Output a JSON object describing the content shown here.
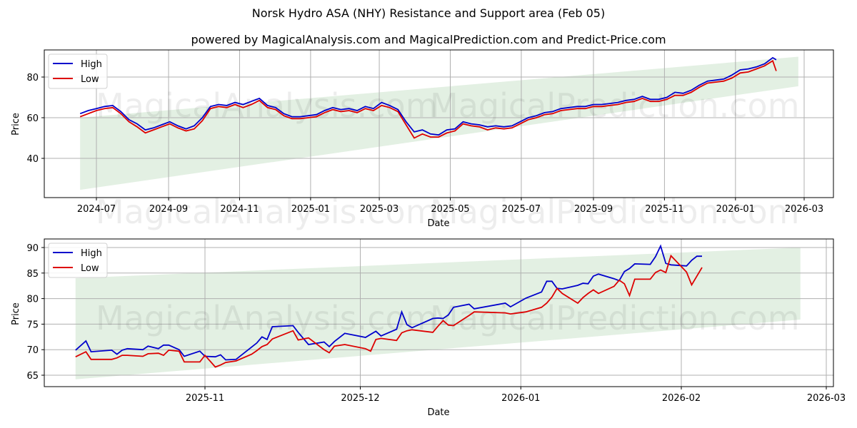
{
  "header": {
    "title": "Norsk Hydro ASA (NHY) Resistance and Support area (Feb 05)",
    "subtitle": "powered by MagicalAnalysis.com and MagicalPrediction.com and Predict-Price.com"
  },
  "watermarks": [
    "MagicalAnalysis.com",
    "MagicalPrediction.com"
  ],
  "colors": {
    "high": "#0000cc",
    "low": "#dd0000",
    "band": "#d9ebd9",
    "grid": "#b0b0b0"
  },
  "chart_data": [
    {
      "type": "line",
      "title": "Norsk Hydro ASA (NHY) Resistance and Support area (Feb 05)",
      "xlabel": "Date",
      "ylabel": "Price",
      "ylim": [
        21,
        94
      ],
      "yticks": [
        40,
        60,
        80
      ],
      "xticks": [
        "2024-07",
        "2024-09",
        "2024-11",
        "2025-01",
        "2025-03",
        "2025-05",
        "2025-07",
        "2025-09",
        "2025-11",
        "2026-01",
        "2026-03"
      ],
      "grid": true,
      "legend": {
        "position": "upper left",
        "entries": [
          "High",
          "Low"
        ]
      },
      "band": {
        "start": "2024-06-17",
        "end": "2026-02-24",
        "upper_start": 60,
        "upper_end": 90,
        "lower_start": 24.5,
        "lower_end": 75.5
      },
      "series": [
        {
          "name": "High",
          "x": [
            "2024-06-17",
            "2024-06-24",
            "2024-07-01",
            "2024-07-08",
            "2024-07-15",
            "2024-07-22",
            "2024-07-29",
            "2024-08-05",
            "2024-08-12",
            "2024-08-19",
            "2024-08-26",
            "2024-09-02",
            "2024-09-09",
            "2024-09-16",
            "2024-09-23",
            "2024-09-30",
            "2024-10-07",
            "2024-10-14",
            "2024-10-21",
            "2024-10-28",
            "2024-11-04",
            "2024-11-11",
            "2024-11-18",
            "2024-11-25",
            "2024-12-02",
            "2024-12-09",
            "2024-12-16",
            "2024-12-23",
            "2024-12-30",
            "2025-01-06",
            "2025-01-13",
            "2025-01-20",
            "2025-01-27",
            "2025-02-03",
            "2025-02-10",
            "2025-02-17",
            "2025-02-24",
            "2025-03-03",
            "2025-03-10",
            "2025-03-17",
            "2025-03-24",
            "2025-03-31",
            "2025-04-07",
            "2025-04-14",
            "2025-04-21",
            "2025-04-28",
            "2025-05-05",
            "2025-05-12",
            "2025-05-19",
            "2025-05-26",
            "2025-06-02",
            "2025-06-09",
            "2025-06-16",
            "2025-06-23",
            "2025-06-30",
            "2025-07-07",
            "2025-07-14",
            "2025-07-21",
            "2025-07-28",
            "2025-08-04",
            "2025-08-11",
            "2025-08-18",
            "2025-08-25",
            "2025-09-01",
            "2025-09-08",
            "2025-09-15",
            "2025-09-22",
            "2025-09-29",
            "2025-10-06",
            "2025-10-13",
            "2025-10-20",
            "2025-10-27",
            "2025-11-03",
            "2025-11-10",
            "2025-11-17",
            "2025-11-24",
            "2025-12-01",
            "2025-12-08",
            "2025-12-15",
            "2025-12-22",
            "2025-12-29",
            "2026-01-05",
            "2026-01-12",
            "2026-01-19",
            "2026-01-26",
            "2026-02-02",
            "2026-02-05"
          ],
          "values": [
            62,
            63.5,
            64.5,
            65.5,
            66,
            63,
            59,
            57,
            54,
            55,
            56.5,
            58,
            56,
            54.5,
            56,
            60,
            65.5,
            66.5,
            66,
            67.5,
            66.5,
            68,
            69.5,
            66,
            65,
            62,
            60.5,
            60.5,
            61,
            61.5,
            63.5,
            65,
            64,
            64.5,
            63.5,
            65.5,
            64.5,
            67.5,
            66,
            64,
            58,
            53,
            54,
            52,
            51.5,
            54,
            54.5,
            58,
            57,
            56.5,
            55.5,
            56,
            55.5,
            56,
            58,
            60,
            61,
            62.5,
            63,
            64.5,
            65,
            65.5,
            65.5,
            66.5,
            66.5,
            67,
            67.5,
            68.5,
            69,
            70.5,
            69,
            69,
            70,
            72.5,
            72,
            73.5,
            76,
            78,
            78.5,
            79,
            81,
            83.5,
            84,
            85,
            86.5,
            89.5,
            88.5
          ]
        },
        {
          "name": "Low",
          "x": "same as High",
          "values": [
            60.5,
            62,
            63.5,
            64.5,
            65,
            62,
            58,
            55.5,
            52.5,
            54,
            55.5,
            57,
            55,
            53.5,
            54.5,
            58.5,
            64.5,
            65.5,
            65,
            66.5,
            65,
            66.5,
            68.5,
            65,
            64,
            61,
            59.5,
            59.5,
            60,
            60.5,
            62.5,
            64,
            63,
            63.5,
            62.5,
            64.5,
            63.5,
            66,
            65,
            63,
            56.5,
            50,
            52,
            50.5,
            50.5,
            52.5,
            53.5,
            57,
            56,
            55.5,
            54,
            55,
            54.5,
            55,
            57,
            59,
            60,
            61.5,
            62,
            63.5,
            64,
            64.5,
            64.5,
            65.5,
            65.5,
            66,
            66.5,
            67.5,
            68,
            69.5,
            68,
            68,
            69,
            71,
            71,
            72.5,
            75,
            77,
            77.5,
            78,
            79.5,
            82,
            82.5,
            84,
            85.5,
            88,
            83
          ]
        }
      ]
    },
    {
      "type": "line",
      "title": "",
      "xlabel": "Date",
      "ylabel": "Price",
      "ylim": [
        63,
        91.5
      ],
      "yticks": [
        65,
        70,
        75,
        80,
        85,
        90
      ],
      "xticks": [
        "2025-11",
        "2025-12",
        "2026-01",
        "2026-02",
        "2026-03"
      ],
      "grid": true,
      "legend": {
        "position": "upper left",
        "entries": [
          "High",
          "Low"
        ]
      },
      "band": {
        "start": "2025-10-07",
        "end": "2026-02-24",
        "upper_start": 84,
        "upper_end": 90,
        "lower_start": 64.2,
        "lower_end": 75.9
      },
      "series": [
        {
          "name": "High",
          "x": [
            "2025-10-07",
            "2025-10-09",
            "2025-10-10",
            "2025-10-14",
            "2025-10-15",
            "2025-10-16",
            "2025-10-17",
            "2025-10-20",
            "2025-10-21",
            "2025-10-23",
            "2025-10-24",
            "2025-10-25",
            "2025-10-27",
            "2025-10-28",
            "2025-10-31",
            "2025-11-01",
            "2025-11-03",
            "2025-11-04",
            "2025-11-05",
            "2025-11-07",
            "2025-11-10",
            "2025-11-11",
            "2025-11-12",
            "2025-11-13",
            "2025-11-14",
            "2025-11-18",
            "2025-11-19",
            "2025-11-21",
            "2025-11-24",
            "2025-11-25",
            "2025-11-26",
            "2025-11-28",
            "2025-12-02",
            "2025-12-03",
            "2025-12-04",
            "2025-12-05",
            "2025-12-08",
            "2025-12-09",
            "2025-12-10",
            "2025-12-11",
            "2025-12-15",
            "2025-12-16",
            "2025-12-17",
            "2025-12-18",
            "2025-12-19",
            "2025-12-22",
            "2025-12-23",
            "2025-12-29",
            "2025-12-30",
            "2026-01-02",
            "2026-01-05",
            "2026-01-06",
            "2026-01-07",
            "2026-01-08",
            "2026-01-09",
            "2026-01-12",
            "2026-01-13",
            "2026-01-14",
            "2026-01-15",
            "2026-01-16",
            "2026-01-19",
            "2026-01-20",
            "2026-01-21",
            "2026-01-22",
            "2026-01-23",
            "2026-01-26",
            "2026-01-27",
            "2026-01-28",
            "2026-01-29",
            "2026-01-30",
            "2026-02-02",
            "2026-02-03",
            "2026-02-04",
            "2026-02-05"
          ],
          "values": [
            69.9,
            71.7,
            69.6,
            69.9,
            69.1,
            69.9,
            70.2,
            70.0,
            70.7,
            70.2,
            70.9,
            70.9,
            70.0,
            68.7,
            69.7,
            68.7,
            68.6,
            69.0,
            68.0,
            68.1,
            70.5,
            71.3,
            72.5,
            72.0,
            74.5,
            74.7,
            73.4,
            71.0,
            71.5,
            70.6,
            71.6,
            73.2,
            72.4,
            73.0,
            73.6,
            72.7,
            74.0,
            77.4,
            74.9,
            74.3,
            76.1,
            76.2,
            76.1,
            76.8,
            78.3,
            78.9,
            78.0,
            79.1,
            78.4,
            80.1,
            81.3,
            83.4,
            83.4,
            82.0,
            81.9,
            82.6,
            83.0,
            82.9,
            84.4,
            84.8,
            83.9,
            83.5,
            85.3,
            85.9,
            86.8,
            86.7,
            88.2,
            90.3,
            86.9,
            86.6,
            86.4,
            87.5,
            88.3,
            88.3
          ]
        },
        {
          "name": "Low",
          "x": "same as High",
          "values": [
            68.6,
            69.6,
            68.1,
            68.1,
            68.4,
            68.9,
            68.9,
            68.7,
            69.2,
            69.3,
            68.9,
            69.9,
            69.7,
            67.6,
            67.6,
            68.9,
            66.6,
            67.0,
            67.5,
            67.8,
            69.1,
            69.8,
            70.6,
            71.0,
            72.1,
            73.7,
            71.9,
            72.3,
            70.0,
            69.4,
            70.7,
            71.0,
            70.2,
            69.7,
            72.0,
            72.2,
            71.8,
            73.3,
            73.7,
            73.9,
            73.4,
            74.6,
            75.7,
            74.8,
            74.7,
            76.7,
            77.4,
            77.2,
            77.0,
            77.4,
            78.3,
            79.1,
            80.3,
            82.0,
            81.0,
            79.1,
            80.2,
            81.0,
            81.7,
            81.0,
            82.4,
            83.6,
            82.9,
            80.6,
            83.8,
            83.8,
            85.1,
            85.6,
            85.1,
            88.4,
            85.2,
            82.7,
            84.4,
            86.1
          ]
        }
      ]
    }
  ]
}
